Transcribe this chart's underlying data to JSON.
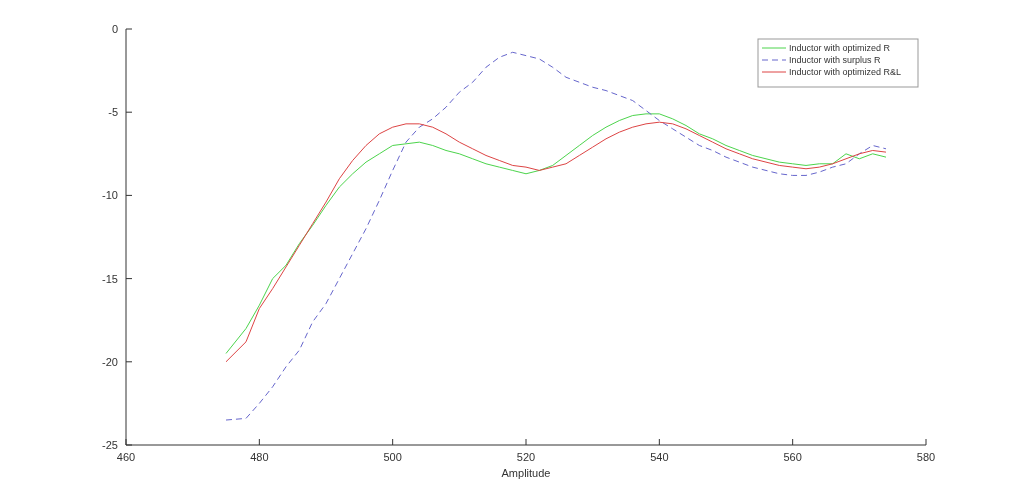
{
  "chart_data": {
    "type": "line",
    "xlabel": "Amplitude",
    "xlim": [
      460,
      580
    ],
    "xticks": [
      460,
      480,
      500,
      520,
      540,
      560,
      580
    ],
    "ylim": [
      -25,
      0
    ],
    "yticks": [
      -25,
      -20,
      -15,
      -10,
      -5,
      0
    ],
    "legend": "top right",
    "grid": false,
    "marker": "none",
    "x": [
      475,
      478,
      480,
      482,
      484,
      486,
      488,
      490,
      492,
      494,
      496,
      498,
      500,
      502,
      504,
      506,
      508,
      510,
      512,
      514,
      516,
      518,
      520,
      522,
      524,
      526,
      528,
      530,
      532,
      534,
      536,
      538,
      540,
      542,
      544,
      546,
      548,
      550,
      552,
      554,
      556,
      558,
      560,
      562,
      564,
      566,
      568,
      570,
      572,
      574
    ],
    "series": [
      {
        "name": "Inductor with optimized R",
        "color": "#4cd44c",
        "line_style": "solid",
        "values": [
          -19.5,
          -18.0,
          -16.6,
          -15.0,
          -14.2,
          -12.9,
          -11.8,
          -10.6,
          -9.5,
          -8.7,
          -8.0,
          -7.5,
          -7.0,
          -6.9,
          -6.8,
          -7.0,
          -7.3,
          -7.5,
          -7.8,
          -8.1,
          -8.3,
          -8.5,
          -8.7,
          -8.5,
          -8.2,
          -7.6,
          -7.0,
          -6.4,
          -5.9,
          -5.5,
          -5.2,
          -5.1,
          -5.1,
          -5.4,
          -5.8,
          -6.3,
          -6.6,
          -7.0,
          -7.3,
          -7.6,
          -7.8,
          -8.0,
          -8.1,
          -8.2,
          -8.1,
          -8.1,
          -7.5,
          -7.8,
          -7.5,
          -7.7
        ]
      },
      {
        "name": "Inductor with surplus R",
        "color": "#6666cc",
        "line_style": "dashed",
        "values": [
          -23.5,
          -23.4,
          -22.5,
          -21.5,
          -20.3,
          -19.3,
          -17.6,
          -16.5,
          -15.0,
          -13.5,
          -12.0,
          -10.3,
          -8.5,
          -6.8,
          -5.9,
          -5.4,
          -4.7,
          -3.8,
          -3.2,
          -2.3,
          -1.7,
          -1.4,
          -1.6,
          -1.8,
          -2.3,
          -2.9,
          -3.2,
          -3.5,
          -3.7,
          -4.0,
          -4.3,
          -4.9,
          -5.5,
          -6.0,
          -6.5,
          -7.0,
          -7.3,
          -7.7,
          -8.0,
          -8.3,
          -8.5,
          -8.7,
          -8.8,
          -8.8,
          -8.6,
          -8.3,
          -8.1,
          -7.5,
          -7.0,
          -7.2
        ]
      },
      {
        "name": "Inductor with optimized R&L",
        "color": "#dd4444",
        "line_style": "solid",
        "values": [
          -20.0,
          -18.8,
          -16.8,
          -15.6,
          -14.3,
          -13.0,
          -11.7,
          -10.4,
          -9.0,
          -7.9,
          -7.0,
          -6.3,
          -5.9,
          -5.7,
          -5.7,
          -5.9,
          -6.3,
          -6.8,
          -7.2,
          -7.6,
          -7.9,
          -8.2,
          -8.3,
          -8.5,
          -8.3,
          -8.1,
          -7.6,
          -7.1,
          -6.6,
          -6.2,
          -5.9,
          -5.7,
          -5.6,
          -5.7,
          -6.0,
          -6.4,
          -6.8,
          -7.2,
          -7.5,
          -7.8,
          -8.0,
          -8.2,
          -8.3,
          -8.4,
          -8.3,
          -8.1,
          -7.8,
          -7.5,
          -7.3,
          -7.4
        ]
      }
    ]
  }
}
